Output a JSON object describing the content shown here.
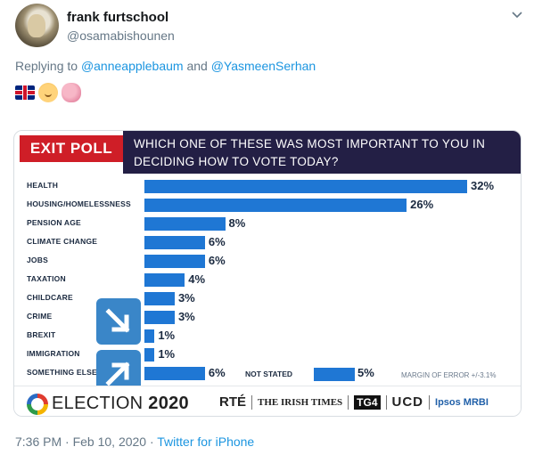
{
  "tweet": {
    "display_name": "frank furtschool",
    "handle": "@osamabishounen",
    "replying_prefix": "Replying to",
    "replying_to": [
      "@anneapplebaum",
      "@YasmeenSerhan"
    ],
    "replying_joiner": "and",
    "emojis": [
      "uk-flag",
      "baby",
      "brain"
    ],
    "timestamp": "7:36 PM · Feb 10, 2020 ·",
    "source": "Twitter for iPhone"
  },
  "poll": {
    "badge": "EXIT POLL",
    "question": "WHICH ONE OF THESE WAS MOST IMPORTANT TO YOU IN DECIDING HOW TO VOTE TODAY?",
    "not_stated_label": "NOT STATED",
    "not_stated_value": "5%",
    "margin_of_error": "MARGIN OF ERROR +/-3.1%",
    "footer": {
      "election_prefix": "ELECTION",
      "election_year": "2020",
      "brands": [
        "RTÉ",
        "THE IRISH TIMES",
        "TG4",
        "UCD",
        "Ipsos MRBI"
      ]
    },
    "colors": {
      "bar": "#1f77d4",
      "badge": "#cf1e27",
      "question_bg": "#231f45",
      "arrow_badge": "#3a86c8"
    }
  },
  "chart_data": {
    "type": "bar",
    "title": "WHICH ONE OF THESE WAS MOST IMPORTANT TO YOU IN DECIDING HOW TO VOTE TODAY?",
    "categories": [
      "HEALTH",
      "HOUSING/HOMELESSNESS",
      "PENSION AGE",
      "CLIMATE CHANGE",
      "JOBS",
      "TAXATION",
      "CHILDCARE",
      "CRIME",
      "BREXIT",
      "IMMIGRATION",
      "SOMETHING ELSE"
    ],
    "values": [
      32,
      26,
      8,
      6,
      6,
      4,
      3,
      3,
      1,
      1,
      6
    ],
    "labels": [
      "32%",
      "26%",
      "8%",
      "6%",
      "6%",
      "4%",
      "3%",
      "3%",
      "1%",
      "1%",
      "6%"
    ],
    "extra": {
      "label": "NOT STATED",
      "value": 5
    },
    "xlim": [
      0,
      32
    ],
    "orientation": "horizontal"
  }
}
